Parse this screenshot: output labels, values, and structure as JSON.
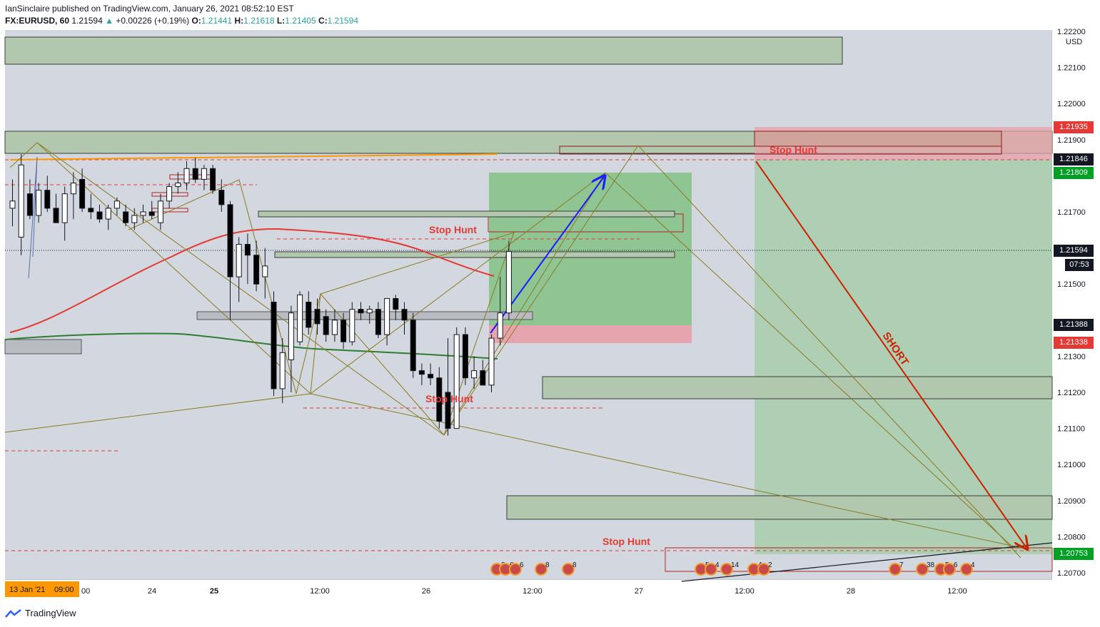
{
  "header": {
    "publisher": "IanSinclaire published on TradingView.com, January 26, 2021 08:52:10 EST",
    "symbol": "FX:EURUSD, 60",
    "last": "1.21594",
    "change": "+0.00226 (+0.19%)",
    "o_label": "O:",
    "o": "1.21441",
    "h_label": "H:",
    "h": "1.21618",
    "l_label": "L:",
    "l": "1.21405",
    "c_label": "C:",
    "c": "1.21594"
  },
  "axis": {
    "currency": "USD",
    "y_ticks": [
      "1.22200",
      "1.22100",
      "1.22000",
      "1.21900",
      "1.21700",
      "1.21500",
      "1.21300",
      "1.21200",
      "1.21100",
      "1.21000",
      "1.20900",
      "1.20800",
      "1.20700"
    ],
    "x_ticks": [
      "24",
      "25",
      "12:00",
      "26",
      "12:00",
      "27",
      "12:00",
      "28",
      "12:00"
    ],
    "x_partial": "00",
    "cursor_date": "13 Jan '21",
    "cursor_time": "09:00",
    "countdown": "07:53"
  },
  "price_labels": [
    {
      "text": "1.21935",
      "color": "#e53935"
    },
    {
      "text": "1.21846",
      "color": "#131722"
    },
    {
      "text": "1.21809",
      "color": "#00a025"
    },
    {
      "text": "1.21594",
      "color": "#131722"
    },
    {
      "text": "1.21388",
      "color": "#131722"
    },
    {
      "text": "1.21338",
      "color": "#e53935"
    },
    {
      "text": "1.20753",
      "color": "#00a025"
    }
  ],
  "annotations": {
    "stop_hunt_1": "Stop Hunt",
    "stop_hunt_2": "Stop Hunt",
    "stop_hunt_3": "Stop Hunt",
    "stop_hunt_4": "Stop Hunt",
    "short": "SHORT"
  },
  "event_badges": [
    "2",
    "6",
    "6",
    "8",
    "8",
    "5",
    "4",
    "14",
    "4",
    "2",
    "7",
    "38",
    "5",
    "6",
    "4"
  ],
  "brand": "TradingView",
  "chart_data": {
    "type": "candlestick",
    "symbol": "FX:EURUSD",
    "interval": "60",
    "ylim": [
      1.2066,
      1.2222
    ],
    "x_labels": [
      "24",
      "25",
      "12:00",
      "26",
      "12:00",
      "27",
      "12:00",
      "28",
      "12:00"
    ],
    "key_levels": {
      "resistance": [
        1.21935,
        1.21846,
        1.21809
      ],
      "last_price": 1.21594,
      "entry_zone": [
        1.21338,
        1.21388
      ],
      "target": 1.20753
    },
    "candles": [
      {
        "o": 1.2171,
        "h": 1.2179,
        "l": 1.2166,
        "c": 1.2173
      },
      {
        "o": 1.2163,
        "h": 1.2186,
        "l": 1.2158,
        "c": 1.2183
      },
      {
        "o": 1.2175,
        "h": 1.2179,
        "l": 1.2168,
        "c": 1.2169
      },
      {
        "o": 1.2169,
        "h": 1.2178,
        "l": 1.2167,
        "c": 1.2176
      },
      {
        "o": 1.2176,
        "h": 1.218,
        "l": 1.217,
        "c": 1.2171
      },
      {
        "o": 1.2171,
        "h": 1.2175,
        "l": 1.2167,
        "c": 1.2167
      },
      {
        "o": 1.2167,
        "h": 1.2177,
        "l": 1.2162,
        "c": 1.2175
      },
      {
        "o": 1.2175,
        "h": 1.2181,
        "l": 1.2168,
        "c": 1.2178
      },
      {
        "o": 1.2179,
        "h": 1.2182,
        "l": 1.217,
        "c": 1.2171
      },
      {
        "o": 1.2171,
        "h": 1.2175,
        "l": 1.2168,
        "c": 1.217
      },
      {
        "o": 1.217,
        "h": 1.2172,
        "l": 1.2167,
        "c": 1.2168
      },
      {
        "o": 1.2168,
        "h": 1.2172,
        "l": 1.2165,
        "c": 1.2171
      },
      {
        "o": 1.2171,
        "h": 1.2174,
        "l": 1.2169,
        "c": 1.2173
      },
      {
        "o": 1.217,
        "h": 1.2172,
        "l": 1.2166,
        "c": 1.2167
      },
      {
        "o": 1.2167,
        "h": 1.2171,
        "l": 1.2165,
        "c": 1.2169
      },
      {
        "o": 1.2169,
        "h": 1.2172,
        "l": 1.2167,
        "c": 1.217
      },
      {
        "o": 1.217,
        "h": 1.2173,
        "l": 1.2168,
        "c": 1.2169
      },
      {
        "o": 1.2167,
        "h": 1.2175,
        "l": 1.2165,
        "c": 1.2173
      },
      {
        "o": 1.2173,
        "h": 1.2178,
        "l": 1.2171,
        "c": 1.2177
      },
      {
        "o": 1.2177,
        "h": 1.2181,
        "l": 1.2175,
        "c": 1.2178
      },
      {
        "o": 1.2178,
        "h": 1.2184,
        "l": 1.2176,
        "c": 1.2182
      },
      {
        "o": 1.2182,
        "h": 1.2185,
        "l": 1.2178,
        "c": 1.2179
      },
      {
        "o": 1.2179,
        "h": 1.2183,
        "l": 1.2176,
        "c": 1.2182
      },
      {
        "o": 1.2182,
        "h": 1.2183,
        "l": 1.2175,
        "c": 1.2176
      },
      {
        "o": 1.2176,
        "h": 1.2179,
        "l": 1.217,
        "c": 1.2172
      },
      {
        "o": 1.2172,
        "h": 1.2173,
        "l": 1.214,
        "c": 1.2152
      },
      {
        "o": 1.2152,
        "h": 1.2163,
        "l": 1.2145,
        "c": 1.2161
      },
      {
        "o": 1.2161,
        "h": 1.2164,
        "l": 1.215,
        "c": 1.2158
      },
      {
        "o": 1.2158,
        "h": 1.2162,
        "l": 1.2148,
        "c": 1.215
      },
      {
        "o": 1.2152,
        "h": 1.216,
        "l": 1.2146,
        "c": 1.2155
      },
      {
        "o": 1.2145,
        "h": 1.2148,
        "l": 1.2119,
        "c": 1.2121
      },
      {
        "o": 1.2121,
        "h": 1.2135,
        "l": 1.2117,
        "c": 1.2131
      },
      {
        "o": 1.2129,
        "h": 1.2144,
        "l": 1.212,
        "c": 1.2142
      },
      {
        "o": 1.2134,
        "h": 1.2148,
        "l": 1.2133,
        "c": 1.2147
      },
      {
        "o": 1.2145,
        "h": 1.2148,
        "l": 1.2136,
        "c": 1.2138
      },
      {
        "o": 1.2143,
        "h": 1.2146,
        "l": 1.2136,
        "c": 1.2139
      },
      {
        "o": 1.2141,
        "h": 1.2143,
        "l": 1.2134,
        "c": 1.2136
      },
      {
        "o": 1.2136,
        "h": 1.2143,
        "l": 1.2134,
        "c": 1.214
      },
      {
        "o": 1.214,
        "h": 1.2142,
        "l": 1.2132,
        "c": 1.2134
      },
      {
        "o": 1.2134,
        "h": 1.2145,
        "l": 1.2133,
        "c": 1.2143
      },
      {
        "o": 1.2143,
        "h": 1.2145,
        "l": 1.214,
        "c": 1.2142
      },
      {
        "o": 1.2142,
        "h": 1.2144,
        "l": 1.2139,
        "c": 1.2143
      },
      {
        "o": 1.2143,
        "h": 1.2145,
        "l": 1.2135,
        "c": 1.2136
      },
      {
        "o": 1.2136,
        "h": 1.2146,
        "l": 1.2133,
        "c": 1.2146
      },
      {
        "o": 1.2146,
        "h": 1.2147,
        "l": 1.214,
        "c": 1.2143
      },
      {
        "o": 1.2143,
        "h": 1.2145,
        "l": 1.2136,
        "c": 1.214
      },
      {
        "o": 1.214,
        "h": 1.2142,
        "l": 1.2124,
        "c": 1.2126
      },
      {
        "o": 1.2126,
        "h": 1.2128,
        "l": 1.2122,
        "c": 1.2125
      },
      {
        "o": 1.2125,
        "h": 1.2128,
        "l": 1.2122,
        "c": 1.2124
      },
      {
        "o": 1.2124,
        "h": 1.2127,
        "l": 1.211,
        "c": 1.2112
      },
      {
        "o": 1.212,
        "h": 1.2135,
        "l": 1.2108,
        "c": 1.211
      },
      {
        "o": 1.211,
        "h": 1.2138,
        "l": 1.211,
        "c": 1.2136
      },
      {
        "o": 1.2136,
        "h": 1.2138,
        "l": 1.2122,
        "c": 1.2124
      },
      {
        "o": 1.2124,
        "h": 1.213,
        "l": 1.2121,
        "c": 1.2126
      },
      {
        "o": 1.2126,
        "h": 1.2129,
        "l": 1.2122,
        "c": 1.2122
      },
      {
        "o": 1.2122,
        "h": 1.2136,
        "l": 1.212,
        "c": 1.2135
      },
      {
        "o": 1.2135,
        "h": 1.2152,
        "l": 1.2133,
        "c": 1.2142
      },
      {
        "o": 1.2142,
        "h": 1.2162,
        "l": 1.214,
        "c": 1.2159
      }
    ]
  }
}
